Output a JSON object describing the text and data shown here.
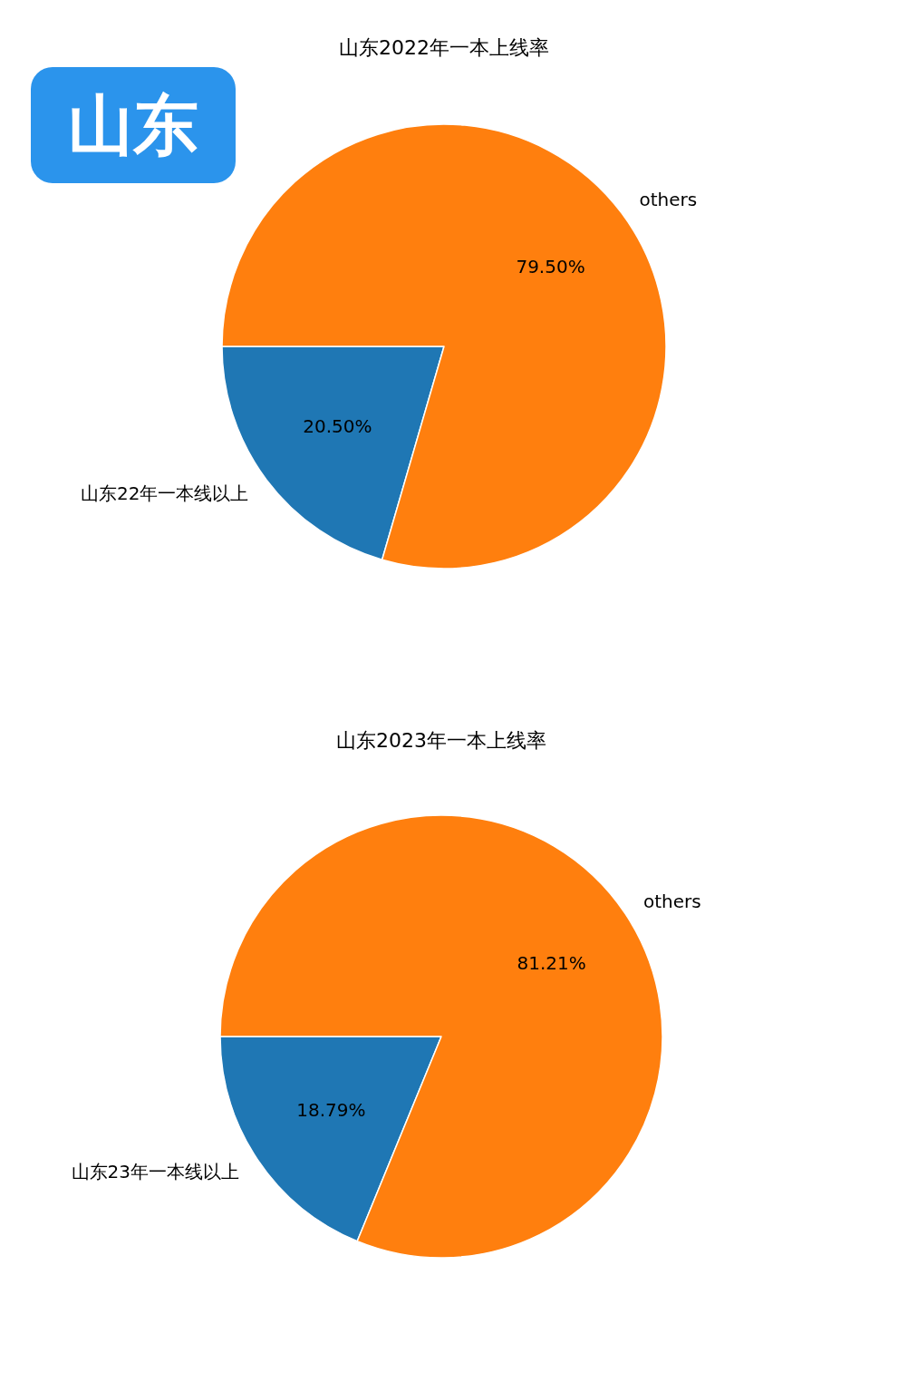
{
  "chart_data": [
    {
      "type": "pie",
      "title": "山东2022年一本上线率",
      "categories": [
        "山东22年一本线以上",
        "others"
      ],
      "values": [
        20.5,
        79.5
      ],
      "value_labels": [
        "20.50%",
        "79.50%"
      ],
      "colors": [
        "#1f77b4",
        "#ff7f0e"
      ],
      "annotations": [
        "山东"
      ]
    },
    {
      "type": "pie",
      "title": "山东2023年一本上线率",
      "categories": [
        "山东23年一本线以上",
        "others"
      ],
      "values": [
        18.79,
        81.21
      ],
      "value_labels": [
        "18.79%",
        "81.21%"
      ],
      "colors": [
        "#1f77b4",
        "#ff7f0e"
      ]
    }
  ]
}
